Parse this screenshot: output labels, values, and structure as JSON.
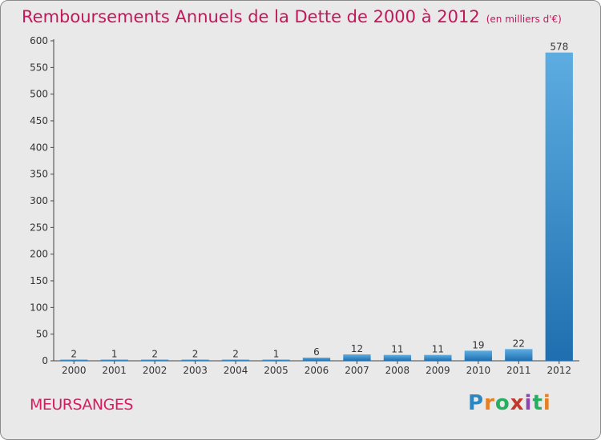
{
  "title": "Remboursements Annuels de la Dette de 2000 à 2012",
  "unit_note": "(en milliers d'€)",
  "commune": "MEURSANGES",
  "brand": {
    "letters": [
      "P",
      "r",
      "o",
      "x",
      "i",
      "t",
      "i"
    ],
    "colors": [
      "#2e86c1",
      "#e67e22",
      "#27ae60",
      "#c0392b",
      "#8e44ad",
      "#27ae60",
      "#e67e22"
    ]
  },
  "chart_data": {
    "type": "bar",
    "categories": [
      "2000",
      "2001",
      "2002",
      "2003",
      "2004",
      "2005",
      "2006",
      "2007",
      "2008",
      "2009",
      "2010",
      "2011",
      "2012"
    ],
    "values": [
      2,
      1,
      2,
      2,
      2,
      1,
      6,
      12,
      11,
      11,
      19,
      22,
      578
    ],
    "value_labels": [
      "2",
      "1",
      "2",
      "2",
      "2",
      "1",
      "6",
      "12",
      "11",
      "11",
      "19",
      "22",
      "578"
    ],
    "ylim": [
      0,
      600
    ],
    "yticks": [
      0,
      50,
      100,
      150,
      200,
      250,
      300,
      350,
      400,
      450,
      500,
      550,
      600
    ],
    "grid": false,
    "bar_color_light": "#5dade2",
    "bar_color_dark": "#1f6fb0"
  }
}
